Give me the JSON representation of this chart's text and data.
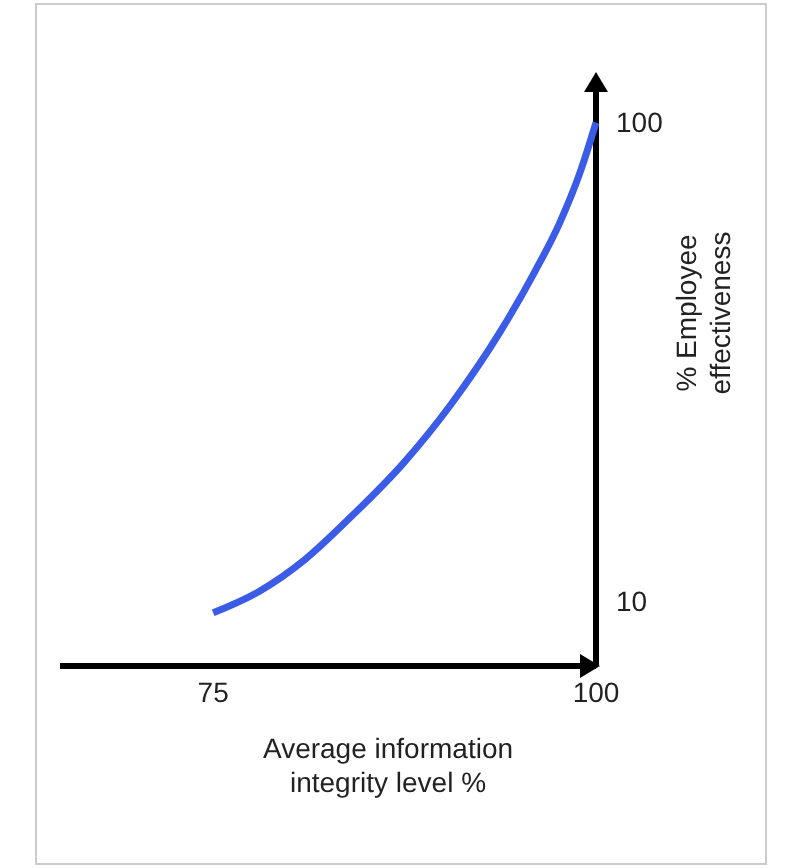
{
  "chart_data": {
    "type": "line",
    "xlabel": "Average information integrity level %",
    "ylabel": "% Employee effectiveness",
    "x": [
      75,
      78,
      81,
      84,
      87.4,
      90.5,
      93.8,
      96,
      97.6,
      99,
      100
    ],
    "series": [
      {
        "color": "#3b5ce6",
        "values": [
          8,
          12,
          18,
          26,
          36,
          47,
          61,
          72,
          81,
          91,
          100
        ]
      }
    ],
    "xlim": [
      65,
      100
    ],
    "ylim": [
      -2,
      108
    ],
    "xticks": [
      75,
      100
    ],
    "yticks": [
      10,
      100
    ],
    "grid": false,
    "marker": "none",
    "line_style": "solid"
  }
}
